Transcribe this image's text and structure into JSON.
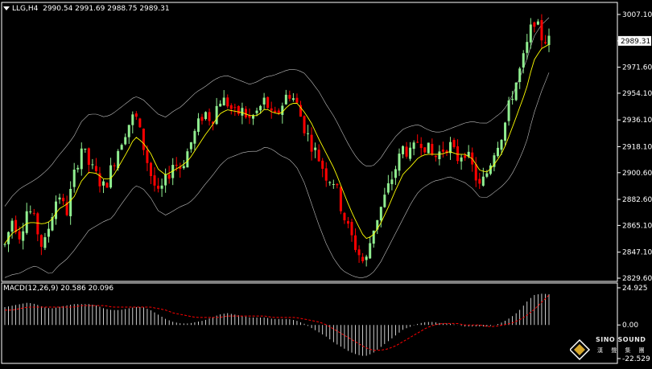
{
  "header": {
    "symbol": "LLG,H4",
    "ohlc": "2990.54 2991.69 2988.75 2989.31"
  },
  "macd_header": {
    "label": "MACD(12,26,9) 20.586 20.096"
  },
  "logo": {
    "name": "SINO SOUND",
    "subtitle": "漢 聲 集 團"
  },
  "colors": {
    "background": "#000000",
    "frame": "#ffffff",
    "bull": "#90ee90",
    "bear": "#ff0000",
    "ma": "#ffff00",
    "bands": "#c0c0c0",
    "macd_signal": "#ff0000",
    "macd_hist": "#ffffff"
  },
  "chart_data": [
    {
      "type": "candlestick",
      "title": "LLG,H4",
      "ylim": [
        2829.6,
        3007.1
      ],
      "y_ticks": [
        "3007.10",
        "2989.31",
        "2971.60",
        "2954.10",
        "2936.10",
        "2918.10",
        "2900.60",
        "2882.60",
        "2865.10",
        "2847.10",
        "2829.60"
      ],
      "current_price": 2989.31,
      "indicators": [
        "Bollinger Bands",
        "Moving Average"
      ],
      "price_path": [
        2852,
        2870,
        2858,
        2878,
        2866,
        2848,
        2870,
        2888,
        2872,
        2898,
        2918,
        2906,
        2898,
        2890,
        2905,
        2920,
        2932,
        2940,
        2920,
        2900,
        2885,
        2895,
        2908,
        2904,
        2917,
        2930,
        2942,
        2936,
        2950,
        2948,
        2940,
        2942,
        2936,
        2942,
        2950,
        2935,
        2945,
        2955,
        2948,
        2932,
        2920,
        2910,
        2898,
        2895,
        2875,
        2860,
        2848,
        2838,
        2862,
        2876,
        2890,
        2904,
        2918,
        2912,
        2924,
        2918,
        2910,
        2916,
        2920,
        2910,
        2916,
        2904,
        2890,
        2902,
        2918,
        2928,
        2950,
        2966,
        2983,
        3005,
        2992,
        2989.31
      ],
      "ma_path": [
        2853,
        2860,
        2863,
        2867,
        2867,
        2866,
        2868,
        2876,
        2879,
        2884,
        2895,
        2901,
        2900,
        2896,
        2897,
        2906,
        2915,
        2925,
        2921,
        2914,
        2903,
        2899,
        2902,
        2905,
        2909,
        2917,
        2925,
        2932,
        2940,
        2943,
        2942,
        2941,
        2939,
        2939,
        2944,
        2941,
        2940,
        2946,
        2948,
        2942,
        2934,
        2923,
        2913,
        2903,
        2890,
        2877,
        2866,
        2856,
        2858,
        2866,
        2877,
        2889,
        2900,
        2905,
        2911,
        2913,
        2913,
        2913,
        2915,
        2913,
        2913,
        2910,
        2902,
        2901,
        2907,
        2915,
        2928,
        2942,
        2956,
        2976,
        2984,
        2987
      ],
      "upper_band": [
        2878,
        2885,
        2890,
        2893,
        2896,
        2900,
        2905,
        2912,
        2918,
        2925,
        2935,
        2940,
        2940,
        2938,
        2940,
        2944,
        2948,
        2952,
        2950,
        2945,
        2940,
        2938,
        2942,
        2945,
        2950,
        2955,
        2958,
        2962,
        2965,
        2966,
        2964,
        2962,
        2960,
        2962,
        2965,
        2966,
        2968,
        2970,
        2970,
        2968,
        2962,
        2955,
        2946,
        2938,
        2928,
        2918,
        2910,
        2905,
        2905,
        2910,
        2918,
        2925,
        2930,
        2932,
        2933,
        2930,
        2928,
        2928,
        2930,
        2932,
        2934,
        2935,
        2934,
        2934,
        2938,
        2942,
        2950,
        2962,
        2975,
        2992,
        3000,
        3005
      ],
      "lower_band": [
        2830,
        2832,
        2833,
        2836,
        2838,
        2835,
        2832,
        2838,
        2842,
        2848,
        2855,
        2862,
        2865,
        2868,
        2870,
        2878,
        2885,
        2892,
        2890,
        2884,
        2875,
        2872,
        2875,
        2878,
        2880,
        2885,
        2892,
        2898,
        2905,
        2910,
        2912,
        2914,
        2915,
        2915,
        2918,
        2916,
        2912,
        2910,
        2905,
        2895,
        2880,
        2865,
        2852,
        2842,
        2835,
        2832,
        2830,
        2830,
        2833,
        2840,
        2850,
        2860,
        2870,
        2880,
        2888,
        2892,
        2895,
        2896,
        2898,
        2896,
        2894,
        2890,
        2884,
        2884,
        2888,
        2892,
        2898,
        2908,
        2920,
        2940,
        2955,
        2968
      ]
    },
    {
      "type": "bar",
      "title": "MACD(12,26,9) 20.586 20.096",
      "ylim": [
        -22.529,
        24.925
      ],
      "y_ticks": [
        "24.925",
        "0.00",
        "-22.529"
      ],
      "main": 20.586,
      "signal": 20.096,
      "histogram_path": [
        12,
        13,
        14,
        15,
        14,
        12,
        11,
        12,
        13,
        14,
        14,
        14,
        13,
        11,
        10,
        10,
        11,
        12,
        12,
        10,
        7,
        4,
        2,
        1,
        1,
        2,
        3,
        5,
        7,
        8,
        7,
        6,
        5,
        5,
        5,
        4,
        4,
        4,
        3,
        1,
        -2,
        -5,
        -8,
        -12,
        -15,
        -18,
        -20,
        -21,
        -19,
        -15,
        -11,
        -7,
        -3,
        -1,
        1,
        2,
        2,
        1,
        1,
        0,
        -1,
        -1,
        -1,
        -1,
        0,
        2,
        5,
        9,
        15,
        20,
        21,
        20.586
      ],
      "signal_path": [
        10,
        10,
        11,
        12,
        12,
        12,
        12,
        12,
        12,
        12,
        13,
        13,
        13,
        13,
        12,
        12,
        12,
        12,
        12,
        12,
        11,
        10,
        8,
        7,
        6,
        5,
        5,
        5,
        5,
        6,
        6,
        6,
        6,
        6,
        6,
        5,
        5,
        5,
        5,
        4,
        3,
        2,
        0,
        -3,
        -6,
        -9,
        -12,
        -15,
        -17,
        -17,
        -16,
        -14,
        -11,
        -8,
        -5,
        -2,
        0,
        1,
        1,
        1,
        0,
        0,
        0,
        -1,
        -1,
        0,
        1,
        3,
        6,
        10,
        15,
        20.096
      ]
    }
  ]
}
